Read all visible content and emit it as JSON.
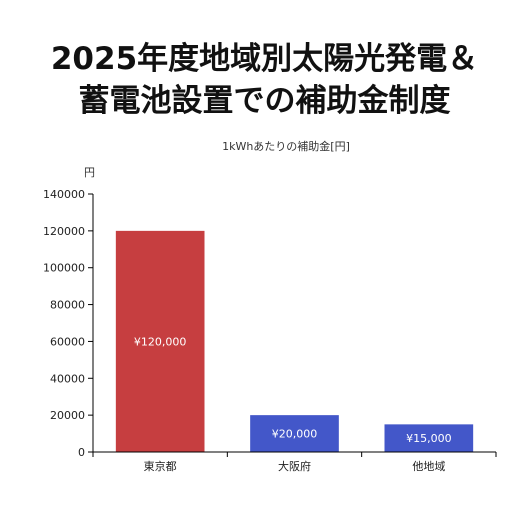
{
  "title_line1": "2025年度地域別太陽光発電＆",
  "title_line2": "蓄電池設置での補助金制度",
  "chart_data": {
    "type": "bar",
    "subtitle": "1kWhあたりの補助金[円]",
    "ylabel": "円",
    "categories": [
      "東京都",
      "大阪府",
      "他地域"
    ],
    "values": [
      120000,
      20000,
      15000
    ],
    "value_labels": [
      "¥120,000",
      "¥20,000",
      "¥15,000"
    ],
    "colors": [
      "#c63e40",
      "#4357c9",
      "#4357c9"
    ],
    "ylim": [
      0,
      140000
    ],
    "yticks": [
      0,
      20000,
      40000,
      60000,
      80000,
      100000,
      120000,
      140000
    ],
    "ytick_labels": [
      "0",
      "20000",
      "40000",
      "60000",
      "80000",
      "100000",
      "120000",
      "140000"
    ],
    "grid": false,
    "legend": "none"
  }
}
